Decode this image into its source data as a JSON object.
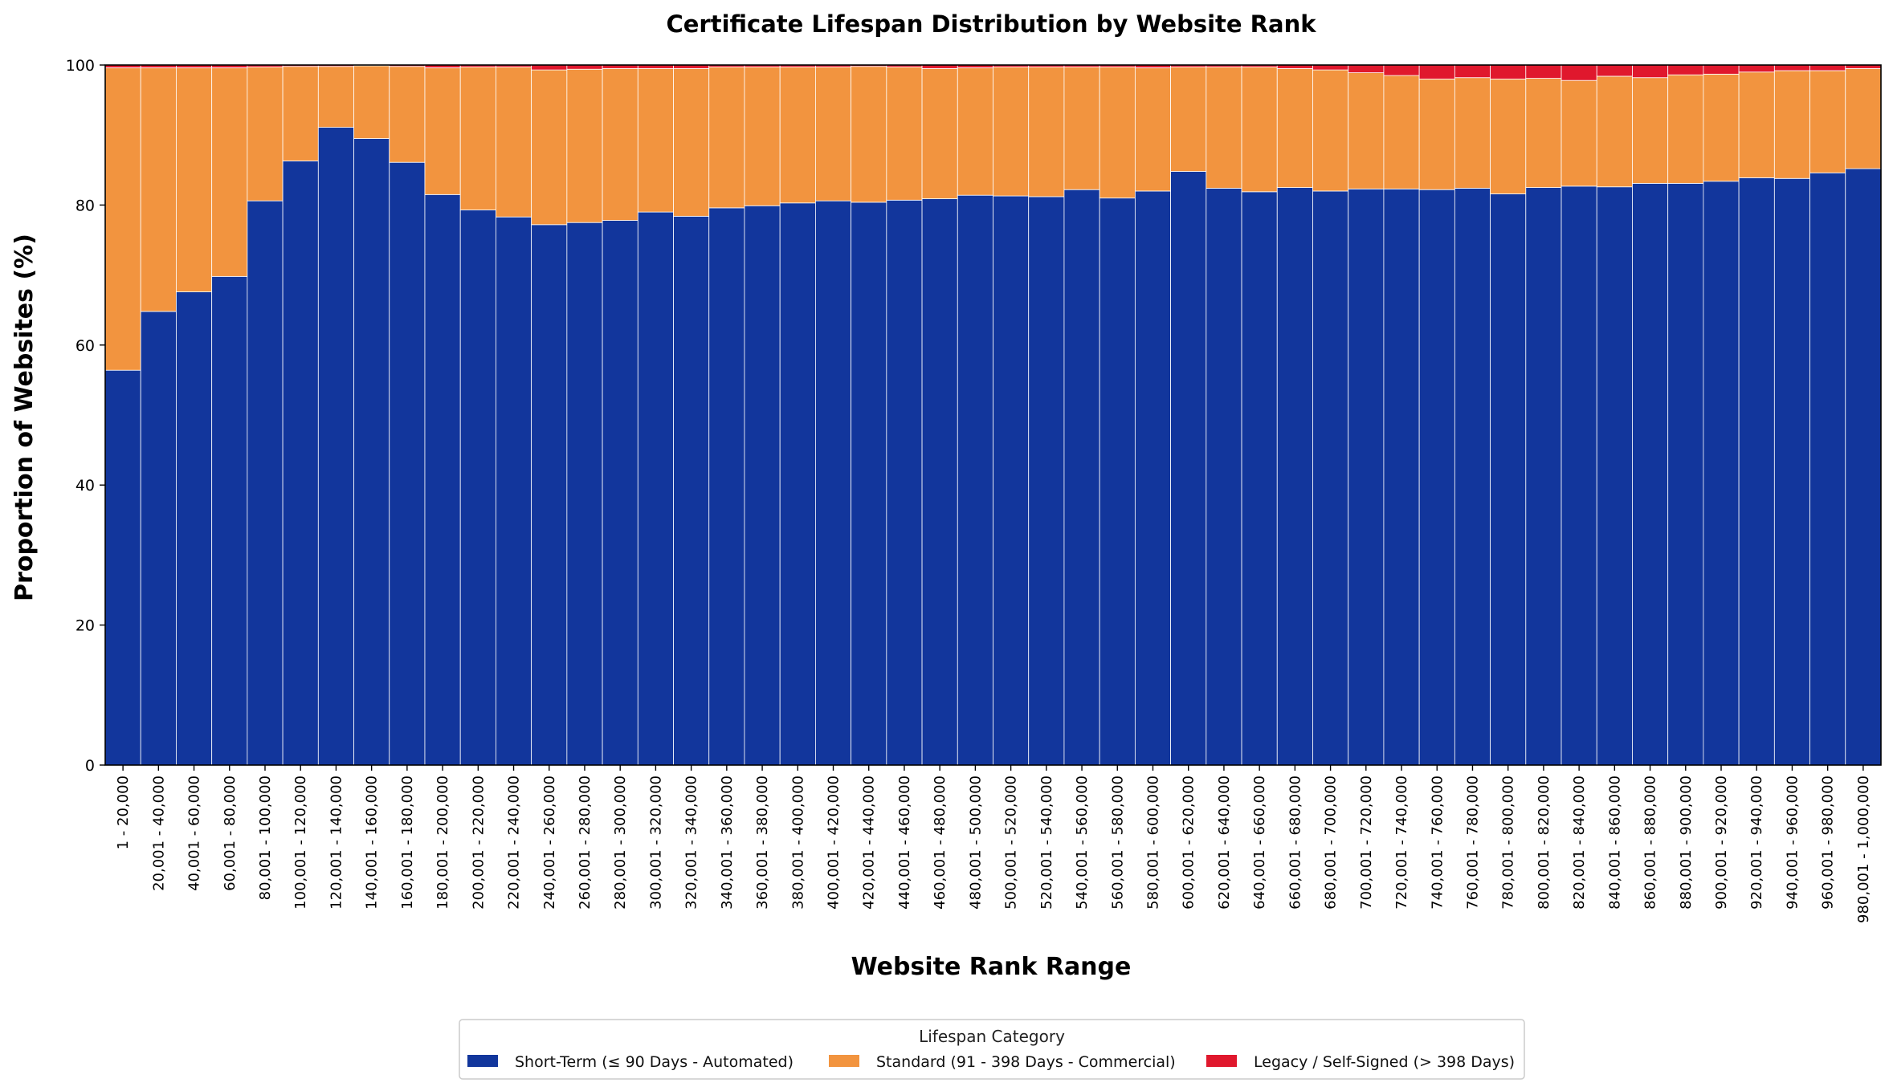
{
  "chart_data": {
    "type": "bar",
    "stacked": true,
    "title": "Certificate Lifespan Distribution by Website Rank",
    "xlabel": "Website Rank Range",
    "ylabel": "Proportion of Websites (%)",
    "ylim": [
      0,
      100
    ],
    "yticks": [
      "0",
      "20",
      "40",
      "60",
      "80",
      "100"
    ],
    "grid": false,
    "legend": {
      "title": "Lifespan Category",
      "placement": "bottom-center"
    },
    "categories": [
      "1 - 20,000",
      "20,001 - 40,000",
      "40,001 - 60,000",
      "60,001 - 80,000",
      "80,001 - 100,000",
      "100,001 - 120,000",
      "120,001 - 140,000",
      "140,001 - 160,000",
      "160,001 - 180,000",
      "180,001 - 200,000",
      "200,001 - 220,000",
      "220,001 - 240,000",
      "240,001 - 260,000",
      "260,001 - 280,000",
      "280,001 - 300,000",
      "300,001 - 320,000",
      "320,001 - 340,000",
      "340,001 - 360,000",
      "360,001 - 380,000",
      "380,001 - 400,000",
      "400,001 - 420,000",
      "420,001 - 440,000",
      "440,001 - 460,000",
      "460,001 - 480,000",
      "480,001 - 500,000",
      "500,001 - 520,000",
      "520,001 - 540,000",
      "540,001 - 560,000",
      "560,001 - 580,000",
      "580,001 - 600,000",
      "600,001 - 620,000",
      "620,001 - 640,000",
      "640,001 - 660,000",
      "660,001 - 680,000",
      "680,001 - 700,000",
      "700,001 - 720,000",
      "720,001 - 740,000",
      "740,001 - 760,000",
      "760,001 - 780,000",
      "780,001 - 800,000",
      "800,001 - 820,000",
      "820,001 - 840,000",
      "840,001 - 860,000",
      "860,001 - 880,000",
      "880,001 - 900,000",
      "900,001 - 920,000",
      "920,001 - 940,000",
      "940,001 - 960,000",
      "960,001 - 980,000",
      "980,001 - 1,000,000"
    ],
    "series": [
      {
        "name": "Short-Term (≤ 90 Days - Automated)",
        "color": "#12369c",
        "values": [
          56.4,
          64.8,
          67.6,
          69.8,
          80.6,
          86.3,
          91.1,
          89.5,
          86.1,
          81.5,
          79.3,
          78.3,
          77.2,
          77.5,
          77.8,
          79.0,
          78.4,
          79.6,
          79.9,
          80.3,
          80.6,
          80.4,
          80.7,
          80.9,
          81.4,
          81.3,
          81.2,
          82.2,
          81.0,
          82.0,
          84.8,
          82.4,
          81.9,
          82.5,
          82.0,
          82.3,
          82.3,
          82.2,
          82.4,
          81.6,
          82.5,
          82.7,
          82.6,
          83.1,
          83.1,
          83.4,
          83.9,
          83.8,
          84.6,
          85.2
        ]
      },
      {
        "name": "Standard (91 - 398 Days - Commercial)",
        "color": "#f2943f",
        "values": [
          43.2,
          34.8,
          32.0,
          29.8,
          19.1,
          13.5,
          8.7,
          10.4,
          13.7,
          18.1,
          20.4,
          21.4,
          22.1,
          21.9,
          21.7,
          20.5,
          21.1,
          20.1,
          19.8,
          19.4,
          19.1,
          19.4,
          19.0,
          18.6,
          18.2,
          18.4,
          18.5,
          17.5,
          18.7,
          17.6,
          14.9,
          17.3,
          17.8,
          17.0,
          17.3,
          16.6,
          16.2,
          15.8,
          15.8,
          16.4,
          15.6,
          15.1,
          15.8,
          15.1,
          15.5,
          15.3,
          15.1,
          15.4,
          14.6,
          14.3
        ]
      },
      {
        "name": "Legacy / Self-Signed (> 398 Days)",
        "color": "#e0182d",
        "values": [
          0.4,
          0.4,
          0.4,
          0.4,
          0.3,
          0.2,
          0.2,
          0.1,
          0.2,
          0.4,
          0.3,
          0.3,
          0.7,
          0.6,
          0.5,
          0.5,
          0.5,
          0.3,
          0.3,
          0.3,
          0.3,
          0.2,
          0.3,
          0.5,
          0.4,
          0.3,
          0.3,
          0.3,
          0.3,
          0.4,
          0.3,
          0.3,
          0.3,
          0.5,
          0.7,
          1.1,
          1.5,
          2.0,
          1.8,
          2.0,
          1.9,
          2.2,
          1.6,
          1.8,
          1.4,
          1.3,
          1.0,
          0.8,
          0.8,
          0.5
        ]
      }
    ]
  }
}
